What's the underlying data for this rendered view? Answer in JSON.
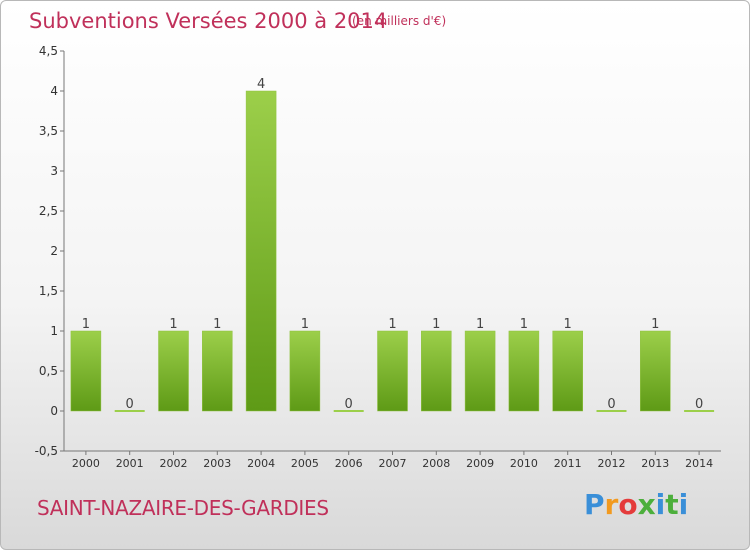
{
  "header": {
    "title": "Subventions Versées 2000 à 2014",
    "unit": "(en milliers d'€)"
  },
  "footer": {
    "city": "SAINT-NAZAIRE-DES-GARDIES",
    "logo": "Proxiti"
  },
  "colors": {
    "title": "#c0305a",
    "bar_top": "#9ccf4a",
    "bar_bottom": "#5e9a16"
  },
  "chart_data": {
    "type": "bar",
    "title": "Subventions Versées 2000 à 2014",
    "categories": [
      "2000",
      "2001",
      "2002",
      "2003",
      "2004",
      "2005",
      "2006",
      "2007",
      "2008",
      "2009",
      "2010",
      "2011",
      "2012",
      "2013",
      "2014"
    ],
    "values": [
      1,
      0,
      1,
      1,
      4,
      1,
      0,
      1,
      1,
      1,
      1,
      1,
      0,
      1,
      0
    ],
    "data_labels": [
      "1",
      "0",
      "1",
      "1",
      "4",
      "1",
      "0",
      "1",
      "1",
      "1",
      "1",
      "1",
      "0",
      "1",
      "0"
    ],
    "ylim": [
      -0.5,
      4.5
    ],
    "yticks": [
      -0.5,
      0,
      0.5,
      1,
      1.5,
      2,
      2.5,
      3,
      3.5,
      4,
      4.5
    ],
    "ytick_labels": [
      "-0,5",
      "0",
      "0,5",
      "1",
      "1,5",
      "2",
      "2,5",
      "3",
      "3,5",
      "4",
      "4,5"
    ],
    "grid": false,
    "legend": "none"
  }
}
